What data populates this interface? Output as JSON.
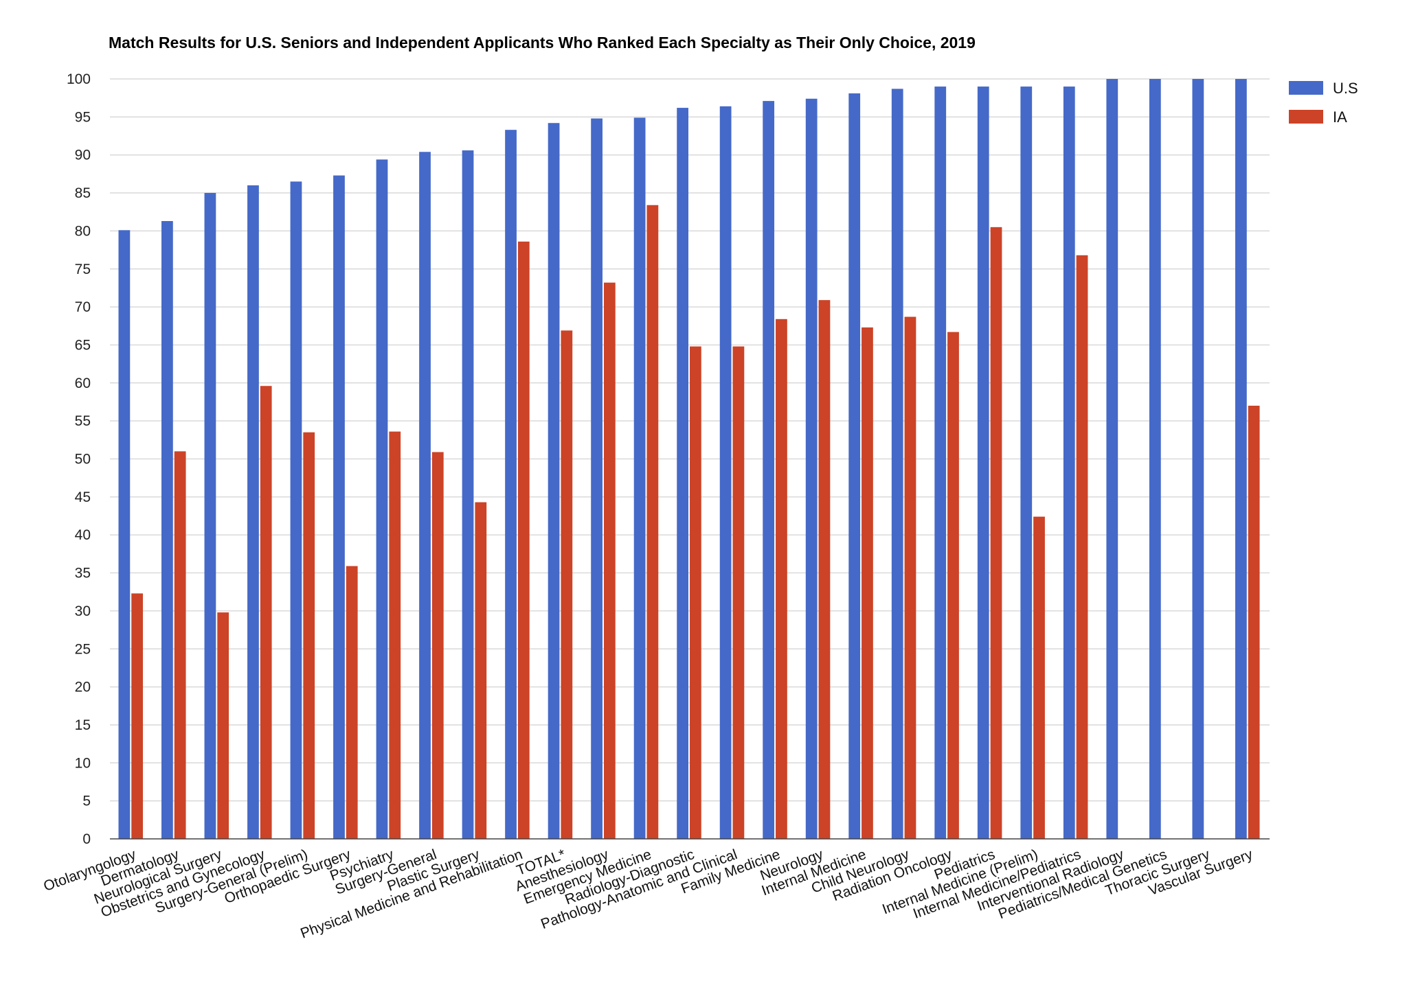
{
  "chart_data": {
    "type": "bar",
    "title": "Match Results for U.S. Seniors and Independent Applicants Who Ranked Each Specialty as Their Only Choice, 2019",
    "xlabel": "",
    "ylabel": "",
    "ylim": [
      0,
      100
    ],
    "ytick_step": 5,
    "grid": true,
    "legend_position": "top-right",
    "categories": [
      "Otolaryngology",
      "Dermatology",
      "Neurological Surgery",
      "Obstetrics and Gynecology",
      "Surgery-General (Prelim)",
      "Orthopaedic Surgery",
      "Psychiatry",
      "Surgery-General",
      "Plastic Surgery",
      "Physical Medicine and Rehabilitation",
      "TOTAL*",
      "Anesthesiology",
      "Emergency Medicine",
      "Radiology-Diagnostic",
      "Pathology-Anatomic and Clinical",
      "Family Medicine",
      "Neurology",
      "Internal Medicine",
      "Child Neurology",
      "Radiation Oncology",
      "Pediatrics",
      "Internal Medicine (Prelim)",
      "Internal Medicine/Pediatrics",
      "Interventional Radiology",
      "Pediatrics/Medical Genetics",
      "Thoracic Surgery",
      "Vascular Surgery"
    ],
    "series": [
      {
        "name": "U.S",
        "color": "#4569c8",
        "values": [
          80.1,
          81.3,
          85.0,
          86.0,
          86.5,
          87.3,
          89.4,
          90.4,
          90.6,
          93.3,
          94.2,
          94.8,
          94.9,
          96.2,
          96.4,
          97.1,
          97.4,
          98.1,
          98.7,
          99.0,
          99.0,
          99.0,
          99.0,
          100,
          100,
          100,
          100
        ]
      },
      {
        "name": "IA",
        "color": "#cc4327",
        "values": [
          32.3,
          51.0,
          29.8,
          59.6,
          53.5,
          35.9,
          53.6,
          50.9,
          44.3,
          78.6,
          66.9,
          73.2,
          83.4,
          64.8,
          64.8,
          68.4,
          70.9,
          67.3,
          68.7,
          66.7,
          80.5,
          42.4,
          76.8,
          0,
          0,
          0,
          57.0
        ]
      }
    ]
  }
}
